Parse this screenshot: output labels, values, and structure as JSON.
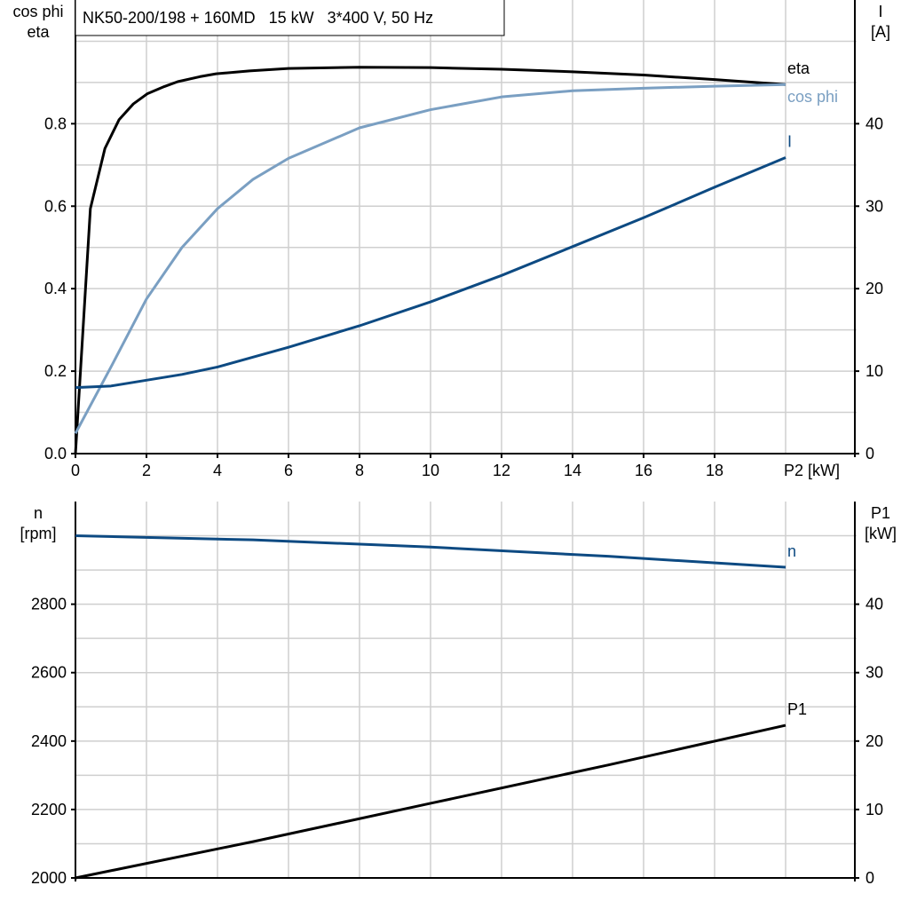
{
  "chart_data": [
    {
      "type": "line",
      "title": "NK50-200/198 + 160MD   15 kW   3*400 V, 50 Hz",
      "xlabel": "P2 [kW]",
      "xlim": [
        0,
        22
      ],
      "xticks": [
        0,
        2,
        4,
        6,
        8,
        10,
        12,
        14,
        16,
        18
      ],
      "ylabel_left": [
        "cos phi",
        "eta"
      ],
      "ylim_left": [
        0,
        1.1
      ],
      "yticks_left": [
        "0.0",
        "0.2",
        "0.4",
        "0.6",
        "0.8"
      ],
      "ylabel_right": [
        "I",
        "[A]"
      ],
      "ylim_right": [
        0,
        55
      ],
      "yticks_right": [
        "0",
        "10",
        "20",
        "30",
        "40"
      ],
      "grid": true,
      "series": [
        {
          "name": "eta",
          "axis": "left",
          "color": "#000000",
          "x": [
            0,
            0.42,
            0.83,
            1.23,
            1.63,
            2.03,
            2.5,
            2.88,
            3.5,
            3.96,
            4.9,
            6,
            8,
            10,
            12,
            14,
            16,
            18,
            20
          ],
          "y": [
            0,
            0.594,
            0.74,
            0.81,
            0.848,
            0.873,
            0.89,
            0.902,
            0.914,
            0.921,
            0.928,
            0.934,
            0.937,
            0.936,
            0.932,
            0.926,
            0.918,
            0.907,
            0.895
          ]
        },
        {
          "name": "cos phi",
          "axis": "left",
          "color": "#7a9fc2",
          "x": [
            0,
            1,
            2,
            3,
            4,
            5,
            6,
            8,
            10,
            12,
            14,
            16,
            18,
            20
          ],
          "y": [
            0.049,
            0.21,
            0.375,
            0.5,
            0.594,
            0.665,
            0.716,
            0.79,
            0.834,
            0.865,
            0.88,
            0.886,
            0.891,
            0.895
          ]
        },
        {
          "name": "I",
          "axis": "right",
          "color": "#0d4a82",
          "x": [
            0,
            1,
            2,
            3,
            4,
            6,
            8,
            10,
            12,
            14,
            16,
            18,
            20
          ],
          "y": [
            8.0,
            8.2,
            8.9,
            9.6,
            10.5,
            12.9,
            15.5,
            18.4,
            21.6,
            25.1,
            28.6,
            32.3,
            35.9
          ]
        }
      ]
    },
    {
      "type": "line",
      "xlim": [
        0,
        22
      ],
      "ylabel_left": [
        "n",
        "[rpm]"
      ],
      "ylim_left": [
        2000,
        3100
      ],
      "yticks_left": [
        "2000",
        "2200",
        "2400",
        "2600",
        "2800"
      ],
      "ylabel_right": [
        "P1",
        "[kW]"
      ],
      "ylim_right": [
        0,
        55
      ],
      "yticks_right": [
        "0",
        "10",
        "20",
        "30",
        "40"
      ],
      "grid": true,
      "series": [
        {
          "name": "n",
          "axis": "left",
          "color": "#0d4a82",
          "x": [
            0,
            5,
            10,
            15,
            20
          ],
          "y": [
            3000,
            2988,
            2967,
            2940,
            2908
          ]
        },
        {
          "name": "P1",
          "axis": "right",
          "color": "#000000",
          "x": [
            0,
            5,
            10,
            15,
            20
          ],
          "y": [
            0,
            5.3,
            10.9,
            16.5,
            22.3
          ]
        }
      ]
    }
  ]
}
